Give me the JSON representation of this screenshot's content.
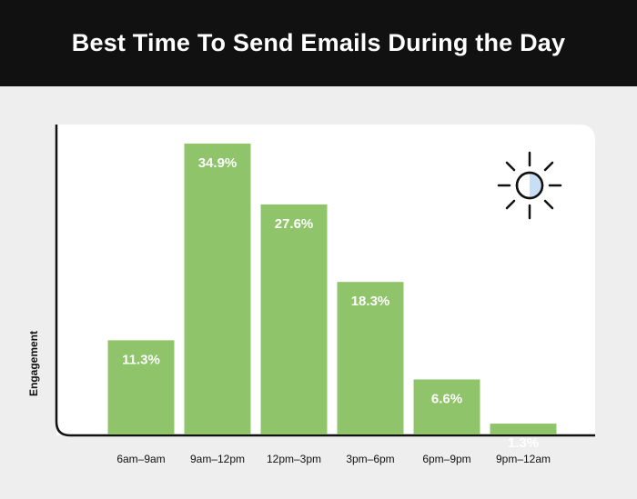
{
  "header": {
    "title": "Best Time To Send Emails During the Day"
  },
  "colors": {
    "bar": "#8fc46a",
    "bar_label": "#ffffff",
    "axis": "#111111",
    "panel": "#ffffff",
    "background": "#eeeeee",
    "header_bg": "#111111"
  },
  "icons": {
    "decoration": "sun-icon"
  },
  "chart_data": {
    "type": "bar",
    "title": "Best Time To Send Emails During the Day",
    "xlabel": "",
    "ylabel": "Engagement",
    "categories": [
      "6am–9am",
      "9am–12pm",
      "12pm–3pm",
      "3pm–6pm",
      "6pm–9pm",
      "9pm–12am"
    ],
    "values": [
      11.3,
      34.9,
      27.6,
      18.3,
      6.6,
      1.3
    ],
    "value_labels": [
      "11.3%",
      "34.9%",
      "27.6%",
      "18.3%",
      "6.6%",
      "1.3%"
    ],
    "unit": "%",
    "ylim": [
      0,
      37
    ],
    "grid": false,
    "legend": "none"
  }
}
